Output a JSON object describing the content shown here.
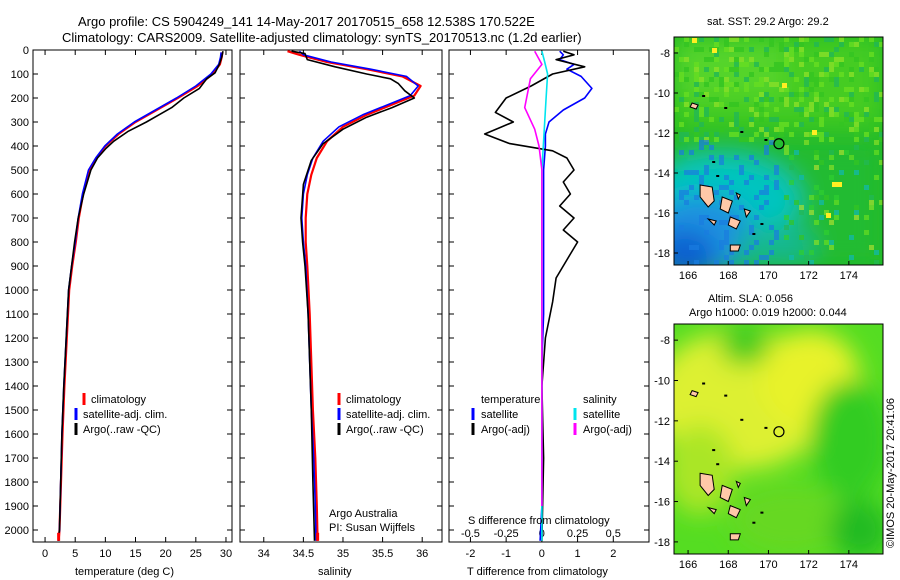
{
  "title_line1": "Argo profile: CS 5904249_141 14-May-2017 20170515_658 12.538S 170.522E",
  "title_line2": "Climatology: CARS2009. Satellite-adjusted climatology: synTS_20170513.nc (1.2d earlier)",
  "colors": {
    "climatology": "#ff0000",
    "satellite": "#0000ff",
    "argo": "#000000",
    "sal_sat": "#00e5ee",
    "sal_argo": "#ff00ff"
  },
  "chart_data": [
    {
      "type": "line",
      "name": "temperature-profile",
      "xlabel": "temperature (deg C)",
      "ylabel": "",
      "xlim": [
        -2,
        31
      ],
      "ylim": [
        2050,
        0
      ],
      "xticks": [
        0,
        5,
        10,
        15,
        20,
        25,
        30
      ],
      "yticks": [
        0,
        100,
        200,
        300,
        400,
        500,
        600,
        700,
        800,
        900,
        1000,
        1100,
        1200,
        1300,
        1400,
        1500,
        1600,
        1700,
        1800,
        1900,
        2000
      ],
      "legend": [
        "climatology",
        "satellite-adj. clim.",
        "Argo(..raw -QC)"
      ],
      "series": [
        {
          "name": "climatology",
          "color": "#ff0000",
          "x": [
            29.4,
            29.3,
            29.0,
            27.8,
            25.3,
            22.0,
            18.5,
            15.0,
            12.2,
            10.0,
            8.5,
            7.3,
            6.3,
            5.6,
            5.1,
            4.5,
            4.0,
            3.6,
            3.2,
            2.9,
            2.65,
            2.4,
            2.25
          ],
          "y": [
            10,
            30,
            60,
            100,
            150,
            200,
            250,
            300,
            350,
            400,
            450,
            500,
            600,
            700,
            800,
            900,
            1000,
            1200,
            1400,
            1600,
            1800,
            2000,
            2045
          ]
        },
        {
          "name": "satellite-adj. clim.",
          "color": "#0000ff",
          "x": [
            29.2,
            29.1,
            28.8,
            27.5,
            25.0,
            21.8,
            18.3,
            14.8,
            12.0,
            9.9,
            8.4,
            7.2,
            6.2,
            5.5,
            5.0,
            4.4,
            3.9,
            3.5,
            3.1,
            2.8,
            2.6,
            2.4,
            2.2
          ],
          "y": [
            10,
            30,
            60,
            100,
            150,
            200,
            250,
            300,
            350,
            400,
            450,
            500,
            600,
            700,
            800,
            900,
            1000,
            1200,
            1400,
            1600,
            1800,
            2000,
            2045
          ]
        },
        {
          "name": "Argo(..raw -QC)",
          "color": "#000000",
          "x": [
            29.5,
            29.3,
            28.9,
            28.2,
            26.8,
            25.6,
            23.0,
            21.0,
            18.9,
            16.8,
            13.7,
            11.4,
            10.1,
            8.7,
            7.6,
            6.4,
            5.5,
            4.9,
            4.4,
            3.9,
            3.5,
            3.1,
            2.8,
            2.6,
            2.4,
            2.2
          ],
          "y": [
            5,
            30,
            60,
            95,
            120,
            160,
            200,
            240,
            270,
            300,
            340,
            380,
            410,
            450,
            500,
            600,
            700,
            800,
            900,
            1000,
            1200,
            1400,
            1600,
            1800,
            2000,
            2045
          ]
        }
      ]
    },
    {
      "type": "line",
      "name": "salinity-profile",
      "xlabel": "salinity",
      "xlim": [
        33.7,
        36.25
      ],
      "ylim": [
        2050,
        0
      ],
      "xticks": [
        34,
        34.5,
        35,
        35.5,
        36
      ],
      "xtick_labels": [
        "34",
        "34.5",
        "35",
        "35.5",
        "36"
      ],
      "legend": [
        "climatology",
        "satellite-adj. clim.",
        "Argo(..raw -QC)"
      ],
      "annotation": [
        "Argo Australia",
        "PI: Susan Wijffels"
      ],
      "series": [
        {
          "name": "climatology",
          "color": "#ff0000",
          "x": [
            34.3,
            34.45,
            34.8,
            35.3,
            35.75,
            35.98,
            35.9,
            35.6,
            35.3,
            35.0,
            34.8,
            34.67,
            34.6,
            34.55,
            34.53,
            34.53,
            34.55,
            34.58,
            34.6,
            34.62,
            34.65,
            34.67,
            34.68
          ],
          "y": [
            5,
            20,
            50,
            80,
            110,
            150,
            190,
            230,
            270,
            320,
            380,
            450,
            520,
            600,
            700,
            800,
            900,
            1100,
            1300,
            1500,
            1700,
            1900,
            2045
          ]
        },
        {
          "name": "satellite-adj. clim.",
          "color": "#0000ff",
          "x": [
            34.45,
            34.5,
            34.85,
            35.35,
            35.8,
            35.95,
            35.85,
            35.55,
            35.25,
            34.95,
            34.75,
            34.62,
            34.55,
            34.5,
            34.48,
            34.5,
            34.53,
            34.56,
            34.58,
            34.6,
            34.63,
            34.65,
            34.66
          ],
          "y": [
            5,
            20,
            50,
            80,
            110,
            150,
            190,
            230,
            270,
            320,
            380,
            450,
            520,
            600,
            700,
            800,
            900,
            1100,
            1300,
            1500,
            1700,
            1900,
            2045
          ]
        },
        {
          "name": "Argo(..raw -QC)",
          "color": "#000000",
          "x": [
            34.35,
            34.52,
            34.55,
            34.9,
            35.3,
            35.6,
            35.7,
            35.78,
            35.9,
            35.62,
            35.3,
            35.0,
            34.75,
            34.6,
            34.5,
            34.47,
            34.49,
            34.52,
            34.56,
            34.58,
            34.6,
            34.62,
            34.64
          ],
          "y": [
            5,
            15,
            40,
            70,
            100,
            120,
            140,
            170,
            200,
            240,
            280,
            330,
            390,
            460,
            560,
            700,
            800,
            900,
            1100,
            1300,
            1500,
            1800,
            2045
          ]
        }
      ]
    },
    {
      "type": "line",
      "name": "difference-profile",
      "xlabel": "T difference from climatology",
      "xlabel2": "S difference from climatology",
      "xlim": [
        -2.6,
        3.0
      ],
      "ylim": [
        2050,
        0
      ],
      "xticks": [
        -2,
        -1,
        0,
        1,
        2
      ],
      "s_xticks": [
        -0.5,
        -0.25,
        0,
        0.25,
        0.5
      ],
      "s_xtick_labels": [
        "-0.5",
        "-0.25",
        "0",
        "0.25",
        "0.5"
      ],
      "s_scale": 4,
      "legend_headers": [
        "temperature",
        "salinity"
      ],
      "legend": [
        "satellite",
        "Argo(-adj)",
        "satellite",
        "Argo(-adj)"
      ],
      "series": [
        {
          "name": "T satellite",
          "color": "#0000ff",
          "x": [
            0.5,
            0.6,
            0.5,
            0.9,
            0.7,
            1.1,
            1.4,
            1.2,
            0.6,
            0.2,
            0.1,
            0.1,
            0.05,
            0.05,
            0.05,
            0.05,
            0.0,
            0.0,
            0.0,
            0.0,
            -0.05
          ],
          "y": [
            5,
            20,
            40,
            60,
            80,
            110,
            160,
            200,
            250,
            300,
            350,
            400,
            500,
            700,
            900,
            1100,
            1300,
            1500,
            1700,
            1900,
            2045
          ]
        },
        {
          "name": "T Argo(-adj)",
          "color": "#000000",
          "x": [
            0.6,
            0.9,
            0.4,
            1.2,
            0.3,
            -0.3,
            -1.0,
            -1.3,
            -0.8,
            -1.6,
            -0.9,
            0.3,
            0.7,
            0.9,
            0.6,
            0.8,
            0.5,
            0.9,
            0.6,
            1.0,
            0.8,
            0.4,
            0.3,
            0.1,
            0.0,
            0.05,
            0.0
          ],
          "y": [
            5,
            20,
            40,
            70,
            100,
            150,
            200,
            260,
            300,
            350,
            390,
            420,
            450,
            500,
            550,
            600,
            650,
            700,
            750,
            800,
            850,
            950,
            1050,
            1200,
            1400,
            1700,
            2045
          ]
        },
        {
          "name": "S satellite",
          "color": "#00e5ee",
          "x": [
            0.0,
            0.02,
            0.04,
            0.03,
            0.02,
            0.01,
            0.0,
            0.0,
            0.0,
            0.0,
            0.0,
            0.0
          ],
          "y": [
            5,
            50,
            100,
            200,
            300,
            400,
            500,
            700,
            1000,
            1400,
            1800,
            2045
          ]
        },
        {
          "name": "S Argo(-adj)",
          "color": "#ff00ff",
          "x": [
            -0.05,
            0.0,
            -0.08,
            -0.12,
            -0.05,
            -0.02,
            0.0,
            0.0,
            0.0,
            0.0
          ],
          "y": [
            5,
            60,
            120,
            240,
            330,
            400,
            500,
            800,
            1300,
            1900
          ]
        }
      ]
    },
    {
      "type": "heatmap",
      "name": "sst-map",
      "title": "sat. SST: 29.2  Argo: 29.2",
      "xlim": [
        165.3,
        175.7
      ],
      "ylim": [
        -18.6,
        -7.2
      ],
      "xticks": [
        166,
        168,
        170,
        172,
        174
      ],
      "yticks": [
        -8,
        -10,
        -12,
        -14,
        -16,
        -18
      ],
      "marker": {
        "lon": 170.522,
        "lat": -12.538
      }
    },
    {
      "type": "heatmap",
      "name": "sla-map",
      "title_line1": "Altim. SLA: 0.056",
      "title_line2": "Argo h1000: 0.019 h2000: 0.044",
      "xlim": [
        165.3,
        175.7
      ],
      "ylim": [
        -18.6,
        -7.2
      ],
      "xticks": [
        166,
        168,
        170,
        172,
        174
      ],
      "yticks": [
        -8,
        -10,
        -12,
        -14,
        -16,
        -18
      ],
      "marker": {
        "lon": 170.522,
        "lat": -12.538
      }
    }
  ],
  "timestamp": "©IMOS 20-May-2017 20:41:06"
}
